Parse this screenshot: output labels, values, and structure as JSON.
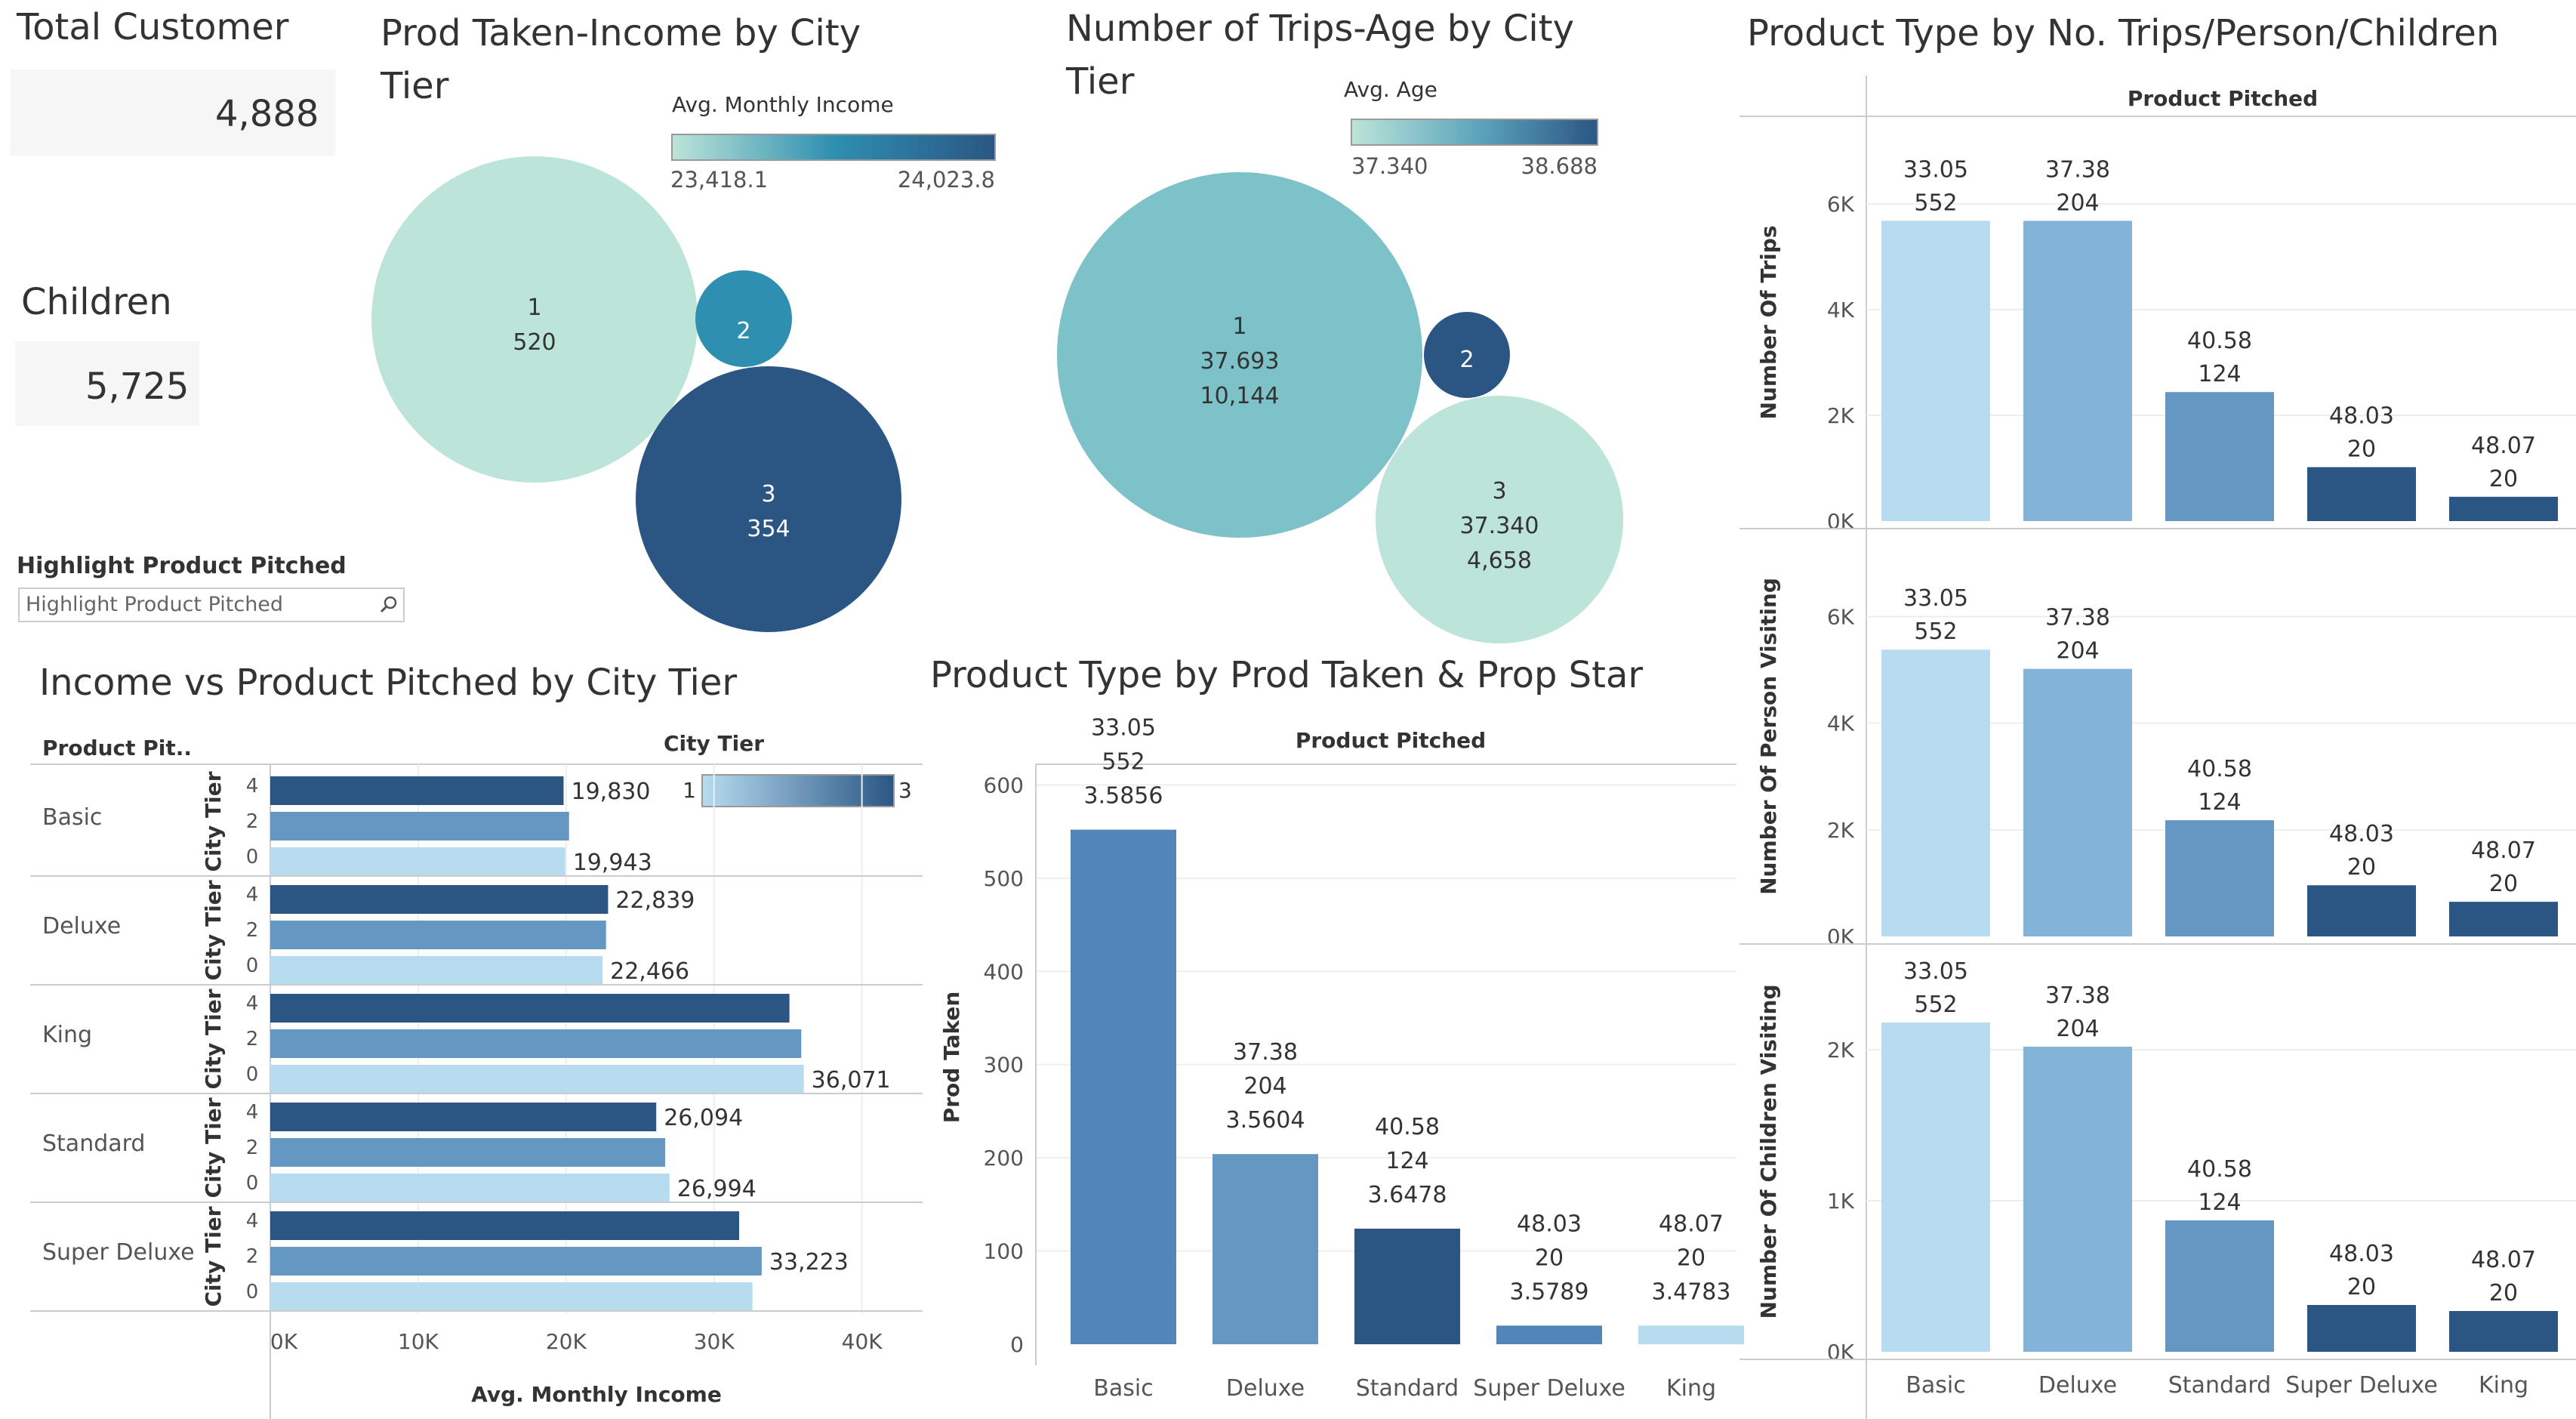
{
  "kpi": {
    "total_customer_label": "Total Customer",
    "total_customer_value": "4,888",
    "children_label": "Children",
    "children_value": "5,725"
  },
  "filter": {
    "label": "Highlight Product Pitched",
    "placeholder": "Highlight Product Pitched"
  },
  "titles": {
    "prod_income_line1": "Prod Taken-Income by City",
    "prod_income_line2": "Tier",
    "trips_age_line1": "Number of Trips-Age by City",
    "trips_age_line2": "Tier",
    "product_type_trips": "Product Type by No. Trips/Person/Children",
    "income_vs_product": "Income vs Product Pitched by City Tier",
    "product_taken_star": "Product Type by Prod Taken & Prop Star"
  },
  "colors": {
    "light": "#bde4d8",
    "mid": "#2e8fb0",
    "dark": "#2b5684",
    "teal": "#7dc1c9",
    "bar_light": "#b7dcf0",
    "bar_mid": "#84b3d9",
    "bar_mid2": "#6497c2",
    "bar_dark": "#2b5684",
    "bar_blue": "#5286b8"
  },
  "chart_data": [
    {
      "type": "bubble",
      "title": "Prod Taken-Income by City Tier",
      "legend_title": "Avg. Monthly Income",
      "legend_min": "23,418.1",
      "legend_max": "24,023.8",
      "points": [
        {
          "tier": "1",
          "value": 520,
          "label": "520",
          "color": "#bde4d8"
        },
        {
          "tier": "2",
          "value": 46,
          "label": "",
          "color": "#2e8fb0"
        },
        {
          "tier": "3",
          "value": 354,
          "label": "354",
          "color": "#2b5684"
        }
      ]
    },
    {
      "type": "bubble",
      "title": "Number of Trips-Age by City Tier",
      "legend_title": "Avg. Age",
      "legend_min": "37.340",
      "legend_max": "38.688",
      "points": [
        {
          "tier": "1",
          "age": "37.693",
          "trips": "10,144",
          "color": "#7dc1c9"
        },
        {
          "tier": "2",
          "age": "",
          "trips": "",
          "color": "#2b5684"
        },
        {
          "tier": "3",
          "age": "37.340",
          "trips": "4,658",
          "color": "#bde4d8"
        }
      ]
    },
    {
      "type": "bar",
      "orientation": "horizontal",
      "title": "Income vs Product Pitched by City Tier",
      "row_header": "Product Pit..",
      "legend_title": "City Tier",
      "legend_min": "1",
      "legend_max": "3",
      "xlabel": "Avg. Monthly Income",
      "row_axis_label": "City Tier",
      "xlim": [
        0,
        44000
      ],
      "xticks": [
        "0K",
        "10K",
        "20K",
        "30K",
        "40K"
      ],
      "tier_ticks": [
        "4",
        "2",
        "0"
      ],
      "categories": [
        "Basic",
        "Deluxe",
        "King",
        "Standard",
        "Super Deluxe"
      ],
      "series": [
        {
          "name": "3",
          "color": "#2b5684",
          "values": [
            19830,
            22839,
            35100,
            26094,
            31700
          ]
        },
        {
          "name": "2",
          "color": "#6497c2",
          "values": [
            20200,
            22700,
            35900,
            26700,
            33223
          ]
        },
        {
          "name": "1",
          "color": "#b7dcf0",
          "values": [
            19943,
            22466,
            36071,
            26994,
            32600
          ]
        }
      ],
      "labels": [
        [
          "19,830",
          "",
          "19,943"
        ],
        [
          "22,839",
          "",
          "22,466"
        ],
        [
          "",
          "",
          "36,071"
        ],
        [
          "26,094",
          "",
          "26,994"
        ],
        [
          "",
          "33,223",
          ""
        ]
      ]
    },
    {
      "type": "bar",
      "title": "Product Type by Prod Taken & Prop Star",
      "header": "Product Pitched",
      "ylabel": "Prod Taken",
      "ylim": [
        0,
        640
      ],
      "yticks": [
        0,
        100,
        200,
        300,
        400,
        500,
        600
      ],
      "categories": [
        "Basic",
        "Deluxe",
        "Standard",
        "Super Deluxe",
        "King"
      ],
      "values": [
        552,
        204,
        124,
        20,
        20
      ],
      "colors": [
        "#5286b8",
        "#6497c2",
        "#2b5684",
        "#5286b8",
        "#b7dcf0"
      ],
      "labels": [
        [
          "33.05",
          "552",
          "3.5856"
        ],
        [
          "37.38",
          "204",
          "3.5604"
        ],
        [
          "40.58",
          "124",
          "3.6478"
        ],
        [
          "48.03",
          "20",
          "3.5789"
        ],
        [
          "48.07",
          "20",
          "3.4783"
        ]
      ]
    },
    {
      "type": "bar",
      "title": "Product Type by No. Trips/Person/Children",
      "header": "Product Pitched",
      "categories": [
        "Basic",
        "Deluxe",
        "Standard",
        "Super Deluxe",
        "King"
      ],
      "colors": [
        "#b7dcf0",
        "#84b3d9",
        "#6497c2",
        "#2b5684",
        "#2b5684"
      ],
      "labels": [
        [
          "33.05",
          "552"
        ],
        [
          "37.38",
          "204"
        ],
        [
          "40.58",
          "124"
        ],
        [
          "48.03",
          "20"
        ],
        [
          "48.07",
          "20"
        ]
      ],
      "panels": [
        {
          "ylabel": "Number Of Trips",
          "ylim": [
            0,
            6800
          ],
          "yticks": [
            0,
            2000,
            4000,
            6000
          ],
          "yticklabels": [
            "0K",
            "2K",
            "4K",
            "6K"
          ],
          "values": [
            5680,
            5680,
            2440,
            1020,
            460
          ]
        },
        {
          "ylabel": "Number Of Person Visiting",
          "ylim": [
            0,
            6800
          ],
          "yticks": [
            0,
            2000,
            4000,
            6000
          ],
          "yticklabels": [
            "0K",
            "2K",
            "4K",
            "6K"
          ],
          "values": [
            5380,
            5020,
            2180,
            960,
            650
          ]
        },
        {
          "ylabel": "Number Of Children Visiting",
          "ylim": [
            0,
            2400
          ],
          "yticks": [
            0,
            1000,
            2000
          ],
          "yticklabels": [
            "0K",
            "1K",
            "2K"
          ],
          "values": [
            2180,
            2020,
            870,
            310,
            270
          ]
        }
      ]
    }
  ]
}
